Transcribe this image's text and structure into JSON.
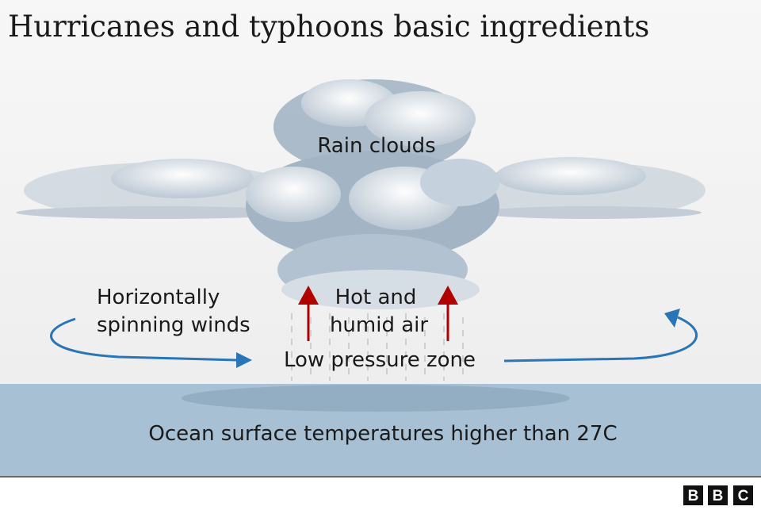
{
  "header": {
    "title": "Hurricanes and typhoons basic ingredients"
  },
  "labels": {
    "rain_clouds": "Rain clouds",
    "winds": [
      "Horizontally",
      "spinning winds"
    ],
    "hot_air": [
      "Hot and",
      "humid air"
    ],
    "low_pressure": "Low pressure zone",
    "ocean": "Ocean surface temperatures higher than 27C"
  },
  "logo": [
    "B",
    "B",
    "C"
  ]
}
